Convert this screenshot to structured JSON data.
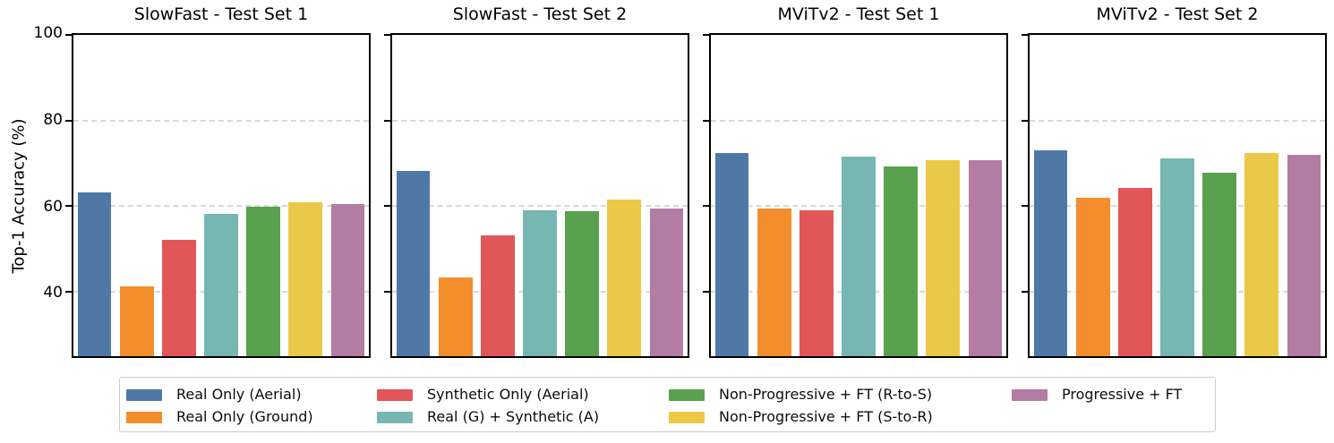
{
  "figure": {
    "ylabel": "Top-1 Accuracy (%)"
  },
  "axis": {
    "ylim": [
      25,
      100
    ],
    "yticks": [
      40,
      60,
      80,
      100
    ],
    "grid": true,
    "grid_color": "#d8d8d8",
    "spine_color": "#000000"
  },
  "palette": [
    "#4E79A7",
    "#F28E2B",
    "#E15759",
    "#76B7B2",
    "#59A14F",
    "#EAC948",
    "#B27CA3"
  ],
  "chart_data": [
    {
      "type": "bar",
      "title": "SlowFast - Test Set 1",
      "categories": [
        "Real Only (Aerial)",
        "Real Only (Ground)",
        "Synthetic Only (Aerial)",
        "Real (G) + Synthetic (A)",
        "Non-Progressive + FT (R-to-S)",
        "Non-Progressive + FT (S-to-R)",
        "Progressive + FT"
      ],
      "values": [
        63.3,
        41.3,
        52.1,
        58.2,
        59.8,
        61.0,
        60.5
      ],
      "xlabel": "",
      "ylabel": "Top-1 Accuracy (%)",
      "ylim": [
        25,
        100
      ],
      "yticks": [
        40,
        60,
        80,
        100
      ]
    },
    {
      "type": "bar",
      "title": "SlowFast - Test Set 2",
      "categories": [
        "Real Only (Aerial)",
        "Real Only (Ground)",
        "Synthetic Only (Aerial)",
        "Real (G) + Synthetic (A)",
        "Non-Progressive + FT (R-to-S)",
        "Non-Progressive + FT (S-to-R)",
        "Progressive + FT"
      ],
      "values": [
        68.2,
        43.4,
        53.3,
        59.0,
        58.8,
        61.5,
        59.4
      ],
      "xlabel": "",
      "ylabel": "Top-1 Accuracy (%)",
      "ylim": [
        25,
        100
      ],
      "yticks": [
        40,
        60,
        80,
        100
      ]
    },
    {
      "type": "bar",
      "title": "MViTv2 - Test Set 1",
      "categories": [
        "Real Only (Aerial)",
        "Real Only (Ground)",
        "Synthetic Only (Aerial)",
        "Real (G) + Synthetic (A)",
        "Non-Progressive + FT (R-to-S)",
        "Non-Progressive + FT (S-to-R)",
        "Progressive + FT"
      ],
      "values": [
        72.4,
        59.5,
        59.0,
        71.6,
        69.2,
        70.8,
        70.8
      ],
      "xlabel": "",
      "ylabel": "Top-1 Accuracy (%)",
      "ylim": [
        25,
        100
      ],
      "yticks": [
        40,
        60,
        80,
        100
      ]
    },
    {
      "type": "bar",
      "title": "MViTv2 - Test Set 2",
      "categories": [
        "Real Only (Aerial)",
        "Real Only (Ground)",
        "Synthetic Only (Aerial)",
        "Real (G) + Synthetic (A)",
        "Non-Progressive + FT (R-to-S)",
        "Non-Progressive + FT (S-to-R)",
        "Progressive + FT"
      ],
      "values": [
        73.0,
        62.0,
        64.2,
        71.1,
        67.8,
        72.5,
        72.1
      ],
      "xlabel": "",
      "ylabel": "Top-1 Accuracy (%)",
      "ylim": [
        25,
        100
      ],
      "yticks": [
        40,
        60,
        80,
        100
      ]
    }
  ],
  "legend": {
    "position": "bottom-center",
    "items": [
      {
        "label": "Real Only (Aerial)",
        "color": "#4E79A7"
      },
      {
        "label": "Real Only (Ground)",
        "color": "#F28E2B"
      },
      {
        "label": "Synthetic Only (Aerial)",
        "color": "#E15759"
      },
      {
        "label": "Real (G) + Synthetic (A)",
        "color": "#76B7B2"
      },
      {
        "label": "Non-Progressive + FT (R-to-S)",
        "color": "#59A14F"
      },
      {
        "label": "Non-Progressive + FT (S-to-R)",
        "color": "#EAC948"
      },
      {
        "label": "Progressive + FT",
        "color": "#B27CA3"
      }
    ],
    "columns": [
      [
        0,
        1
      ],
      [
        2,
        3
      ],
      [
        4,
        5
      ],
      [
        6
      ]
    ]
  }
}
